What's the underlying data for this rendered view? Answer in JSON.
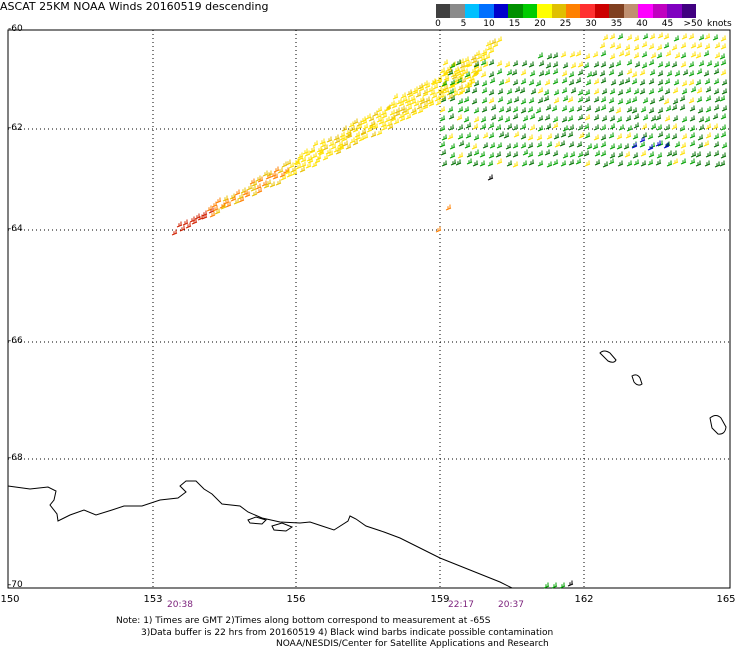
{
  "title": "ASCAT 25KM NOAA Winds 20160519 descending",
  "colorbar": {
    "colors": [
      "#404040",
      "#8a8a8a",
      "#00c0ff",
      "#0070ff",
      "#0000cc",
      "#009000",
      "#00cc00",
      "#ffff00",
      "#e0c000",
      "#ff8000",
      "#ff3030",
      "#cc0000",
      "#804020",
      "#c09070",
      "#ff00ff",
      "#c000c0",
      "#8000c0",
      "#400080"
    ],
    "tick_labels": [
      "0",
      "5",
      "10",
      "15",
      "20",
      "25",
      "30",
      "35",
      "40",
      "45",
      ">50"
    ],
    "unit_label": "knots"
  },
  "axes": {
    "lat_labels": [
      "-60",
      "-62",
      "-64",
      "-66",
      "-68",
      "-70"
    ],
    "lon_labels": [
      "150",
      "153",
      "156",
      "159",
      "162",
      "165"
    ]
  },
  "pass_times": [
    "20:38",
    "22:17",
    "20:37"
  ],
  "notes": [
    "Note: 1) Times are GMT 2)Times along bottom correspond to measurement at -65S",
    "3)Data buffer is 22 hrs from 20160519 4) Black wind barbs indicate possible contamination",
    "NOAA/NESDIS/Center for Satellite Applications and Research"
  ]
}
